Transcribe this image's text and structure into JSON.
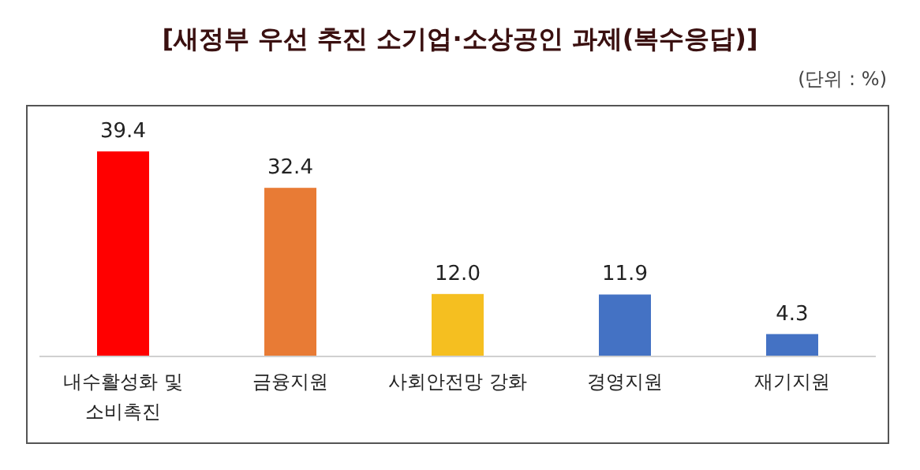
{
  "chart_data": {
    "type": "bar",
    "title": "[새정부 우선 추진 소기업·소상공인 과제(복수응답)]",
    "annotations": [
      "(단위 : %)"
    ],
    "categories": [
      "내수활성화 및 소비촉진",
      "금융지원",
      "사회안전망 강화",
      "경영지원",
      "재기지원"
    ],
    "values": [
      39.4,
      32.4,
      12.0,
      11.9,
      4.3
    ],
    "colors": [
      "#ff0000",
      "#e87b35",
      "#f5bf20",
      "#4472c4",
      "#4472c4"
    ],
    "value_labels": [
      "39.4",
      "32.4",
      "12.0",
      "11.9",
      "4.3"
    ]
  }
}
